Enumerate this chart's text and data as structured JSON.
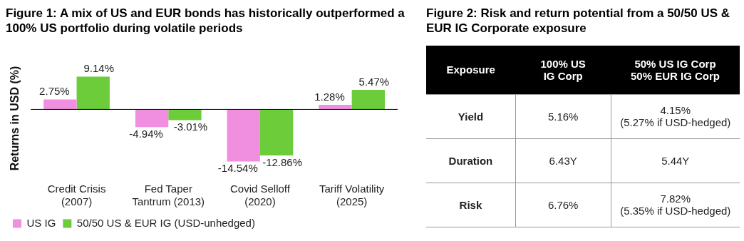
{
  "chart_data": [
    {
      "type": "bar",
      "title": "Figure 1: A mix of US and EUR bonds has historically outperformed a 100% US portfolio during volatile periods",
      "ylabel": "Returns in USD (%)",
      "categories": [
        "Credit Crisis\n(2007)",
        "Fed Taper\nTantrum (2013)",
        "Covid Selloff\n(2020)",
        "Tariff Volatility\n(2025)"
      ],
      "series": [
        {
          "name": "US IG",
          "color": "#f08ee0",
          "values": [
            2.75,
            -4.94,
            -14.54,
            1.28
          ],
          "value_labels": [
            "2.75%",
            "-4.94%",
            "-14.54%",
            "1.28%"
          ]
        },
        {
          "name": "50/50 US & EUR IG (USD-unhedged)",
          "color": "#6ccc3a",
          "values": [
            9.14,
            -3.01,
            -12.86,
            5.47
          ],
          "value_labels": [
            "9.14%",
            "-3.01%",
            "-12.86%",
            "5.47%"
          ]
        }
      ],
      "legend": "bottom left",
      "grid": false
    },
    {
      "type": "other",
      "title": "Figure 2: Risk and return potential from a 50/50 US & EUR IG Corporate exposure",
      "annotations": [
        "Exposure",
        "100% US\nIG Corp",
        "50% US IG Corp\n50% EUR IG Corp",
        "Yield",
        "5.16%",
        "4.15%\n(5.27% if USD-hedged)",
        "Duration",
        "6.43Y",
        "5.44Y",
        "Risk",
        "6.76%",
        "7.82%\n(5.35% if USD-hedged)"
      ]
    }
  ]
}
